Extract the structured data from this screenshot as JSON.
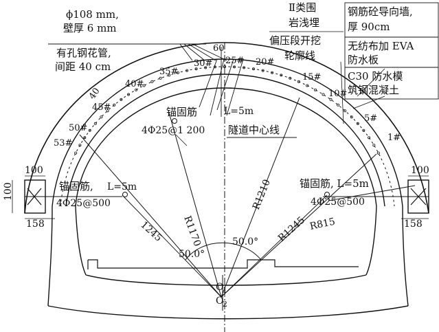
{
  "pipe_note": {
    "spec": "ϕ108 mm,",
    "wall": "壁厚 6 mm",
    "name": "有孔钢花管,",
    "spacing": "间距 40 cm"
  },
  "section_title": {
    "line1": "Ⅱ类围",
    "line2": "岩浅埋",
    "line3": "偏压段开挖",
    "line4": "轮廓线"
  },
  "right_notes": [
    {
      "line1": "钢筋砼导向墙,",
      "line2": "厚 90cm"
    },
    {
      "line1": "无纺布加 EVA",
      "line2": "防水板"
    },
    {
      "line1": "C30 防水模",
      "line2": "筑钢混凝土"
    }
  ],
  "pipe_numbers": {
    "n60": "60",
    "n30": "30#",
    "n25": "25#",
    "n20": "20#",
    "n35": "35#",
    "n40a": "40#",
    "n15": "15#",
    "n40b": "40",
    "n45": "45#",
    "n10": "10#",
    "n50": "50#",
    "n5": "5#",
    "n53": "53#",
    "n1": "1#"
  },
  "anchors": {
    "center_label": "锚固筋",
    "center_length": "L=5m",
    "center_spec": "4Φ25@1 200",
    "left_label": "锚固筋,",
    "left_length": "L=5m",
    "left_spec": "4Φ25@500",
    "right_label": "锚固筋, L=5m",
    "right_spec": "4Φ25@500"
  },
  "centerline": "隧道中心线",
  "radii": {
    "r1170": "R1170",
    "r1210": "R1210",
    "r1245_left": "1245",
    "r1245_right": "R1245",
    "r815": "R815"
  },
  "angles": {
    "left": "50.0°",
    "right": "50.0°"
  },
  "dims": {
    "left_w": "100",
    "left_h": "100",
    "left_foot": "158",
    "right_w": "100",
    "right_foot": "158"
  },
  "origins": {
    "o1": "O",
    "o1_sub": "1",
    "o2": "O",
    "o2_sub": "2"
  }
}
